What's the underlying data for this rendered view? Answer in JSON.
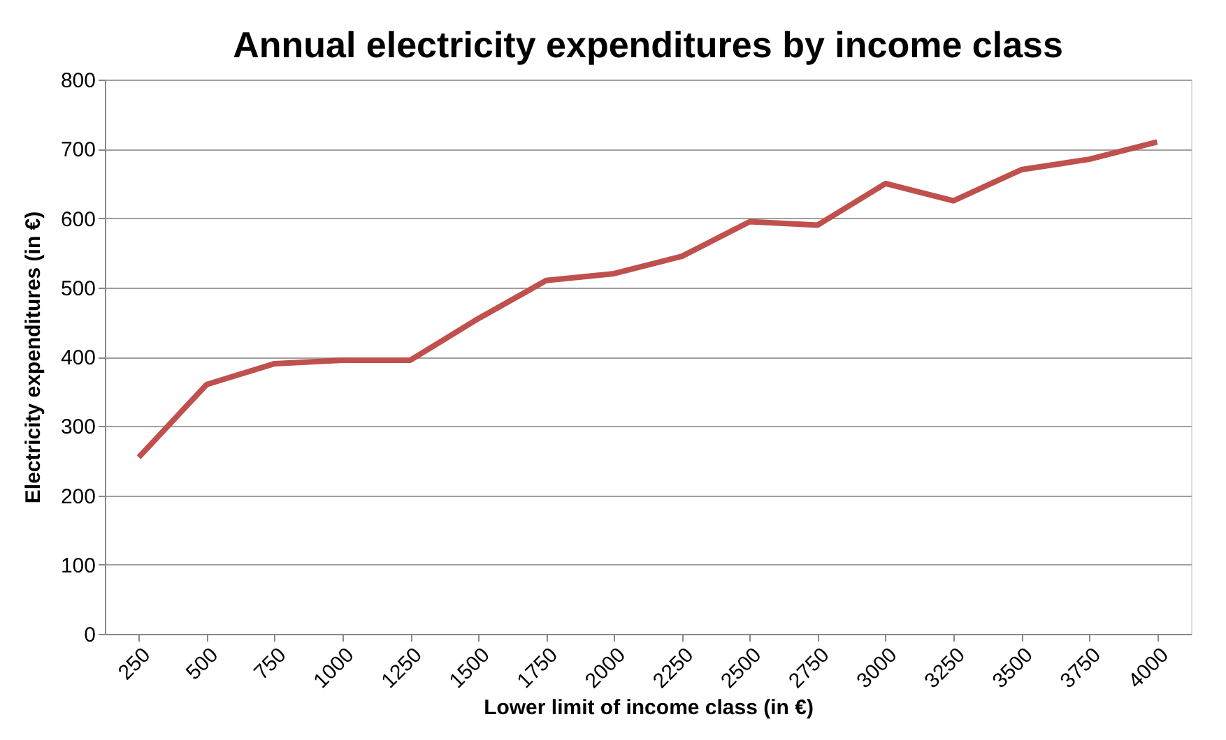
{
  "chart_data": {
    "type": "line",
    "title": "Annual electricity expenditures by income class",
    "xlabel": "Lower limit of income class  (in €)",
    "ylabel": "Electricity expenditures  (in €)",
    "categories": [
      "250",
      "500",
      "750",
      "1000",
      "1250",
      "1500",
      "1750",
      "2000",
      "2250",
      "2500",
      "2750",
      "3000",
      "3250",
      "3500",
      "3750",
      "4000"
    ],
    "series": [
      {
        "color": "#c0504d",
        "values": [
          255,
          360,
          390,
          395,
          395,
          455,
          510,
          520,
          545,
          595,
          590,
          650,
          625,
          670,
          685,
          710
        ]
      }
    ],
    "ylim": [
      0,
      800
    ],
    "yticks": [
      0,
      100,
      200,
      300,
      400,
      500,
      600,
      700,
      800
    ],
    "grid": "y",
    "marker": "none",
    "line_style": "solid"
  }
}
